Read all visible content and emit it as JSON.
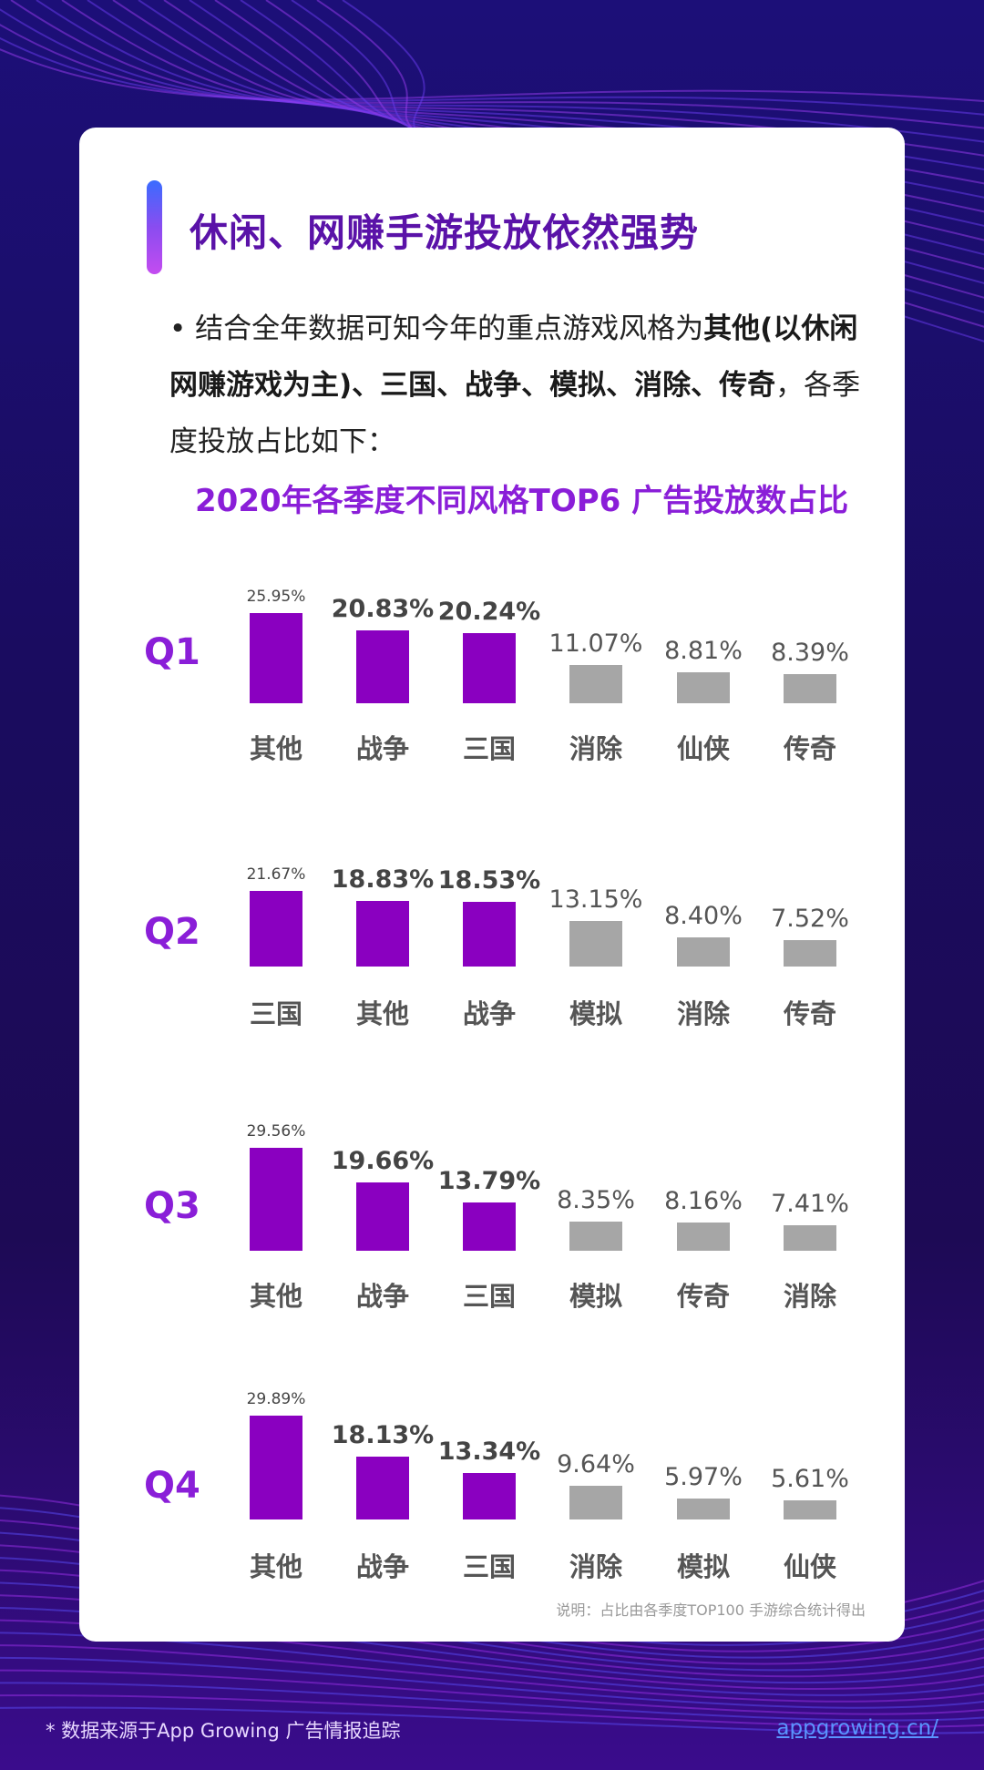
{
  "header": {
    "title": "休闲、网赚手游投放依然强势"
  },
  "body": {
    "bullet": "•",
    "part1": " 结合全年数据可知今年的重点游戏风格为",
    "bold1": "其他(以休闲网赚游戏为主)、三国、战争、模拟、消除、传奇",
    "part2": "，各季度投放占比如下："
  },
  "colors": {
    "highlight_bar": "#8a00c0",
    "other_bar": "#a6a6a6",
    "quarter_label": "#8a1ed8",
    "title": "#5a12a8"
  },
  "chart_data": {
    "type": "bar",
    "title": "2020年各季度不同风格TOP6 广告投放数占比",
    "unit": "%",
    "quarters": [
      {
        "name": "Q1",
        "categories": [
          "其他",
          "战争",
          "三国",
          "消除",
          "仙侠",
          "传奇"
        ],
        "values": [
          25.95,
          20.83,
          20.24,
          11.07,
          8.81,
          8.39
        ],
        "labels": [
          "25.95%",
          "20.83%",
          "20.24%",
          "11.07%",
          "8.81%",
          "8.39%"
        ]
      },
      {
        "name": "Q2",
        "categories": [
          "三国",
          "其他",
          "战争",
          "模拟",
          "消除",
          "传奇"
        ],
        "values": [
          21.67,
          18.83,
          18.53,
          13.15,
          8.4,
          7.52
        ],
        "labels": [
          "21.67%",
          "18.83%",
          "18.53%",
          "13.15%",
          "8.40%",
          "7.52%"
        ]
      },
      {
        "name": "Q3",
        "categories": [
          "其他",
          "战争",
          "三国",
          "模拟",
          "传奇",
          "消除"
        ],
        "values": [
          29.56,
          19.66,
          13.79,
          8.35,
          8.16,
          7.41
        ],
        "labels": [
          "29.56%",
          "19.66%",
          "13.79%",
          "8.35%",
          "8.16%",
          "7.41%"
        ]
      },
      {
        "name": "Q4",
        "categories": [
          "其他",
          "战争",
          "三国",
          "消除",
          "模拟",
          "仙侠"
        ],
        "values": [
          29.89,
          18.13,
          13.34,
          9.64,
          5.97,
          5.61
        ],
        "labels": [
          "29.89%",
          "18.13%",
          "13.34%",
          "9.64%",
          "5.97%",
          "5.61%"
        ]
      }
    ],
    "note": "说明：占比由各季度TOP100  手游综合统计得出"
  },
  "footer": {
    "source": "* 数据来源于App Growing 广告情报追踪",
    "link": "appgrowing.cn/"
  }
}
